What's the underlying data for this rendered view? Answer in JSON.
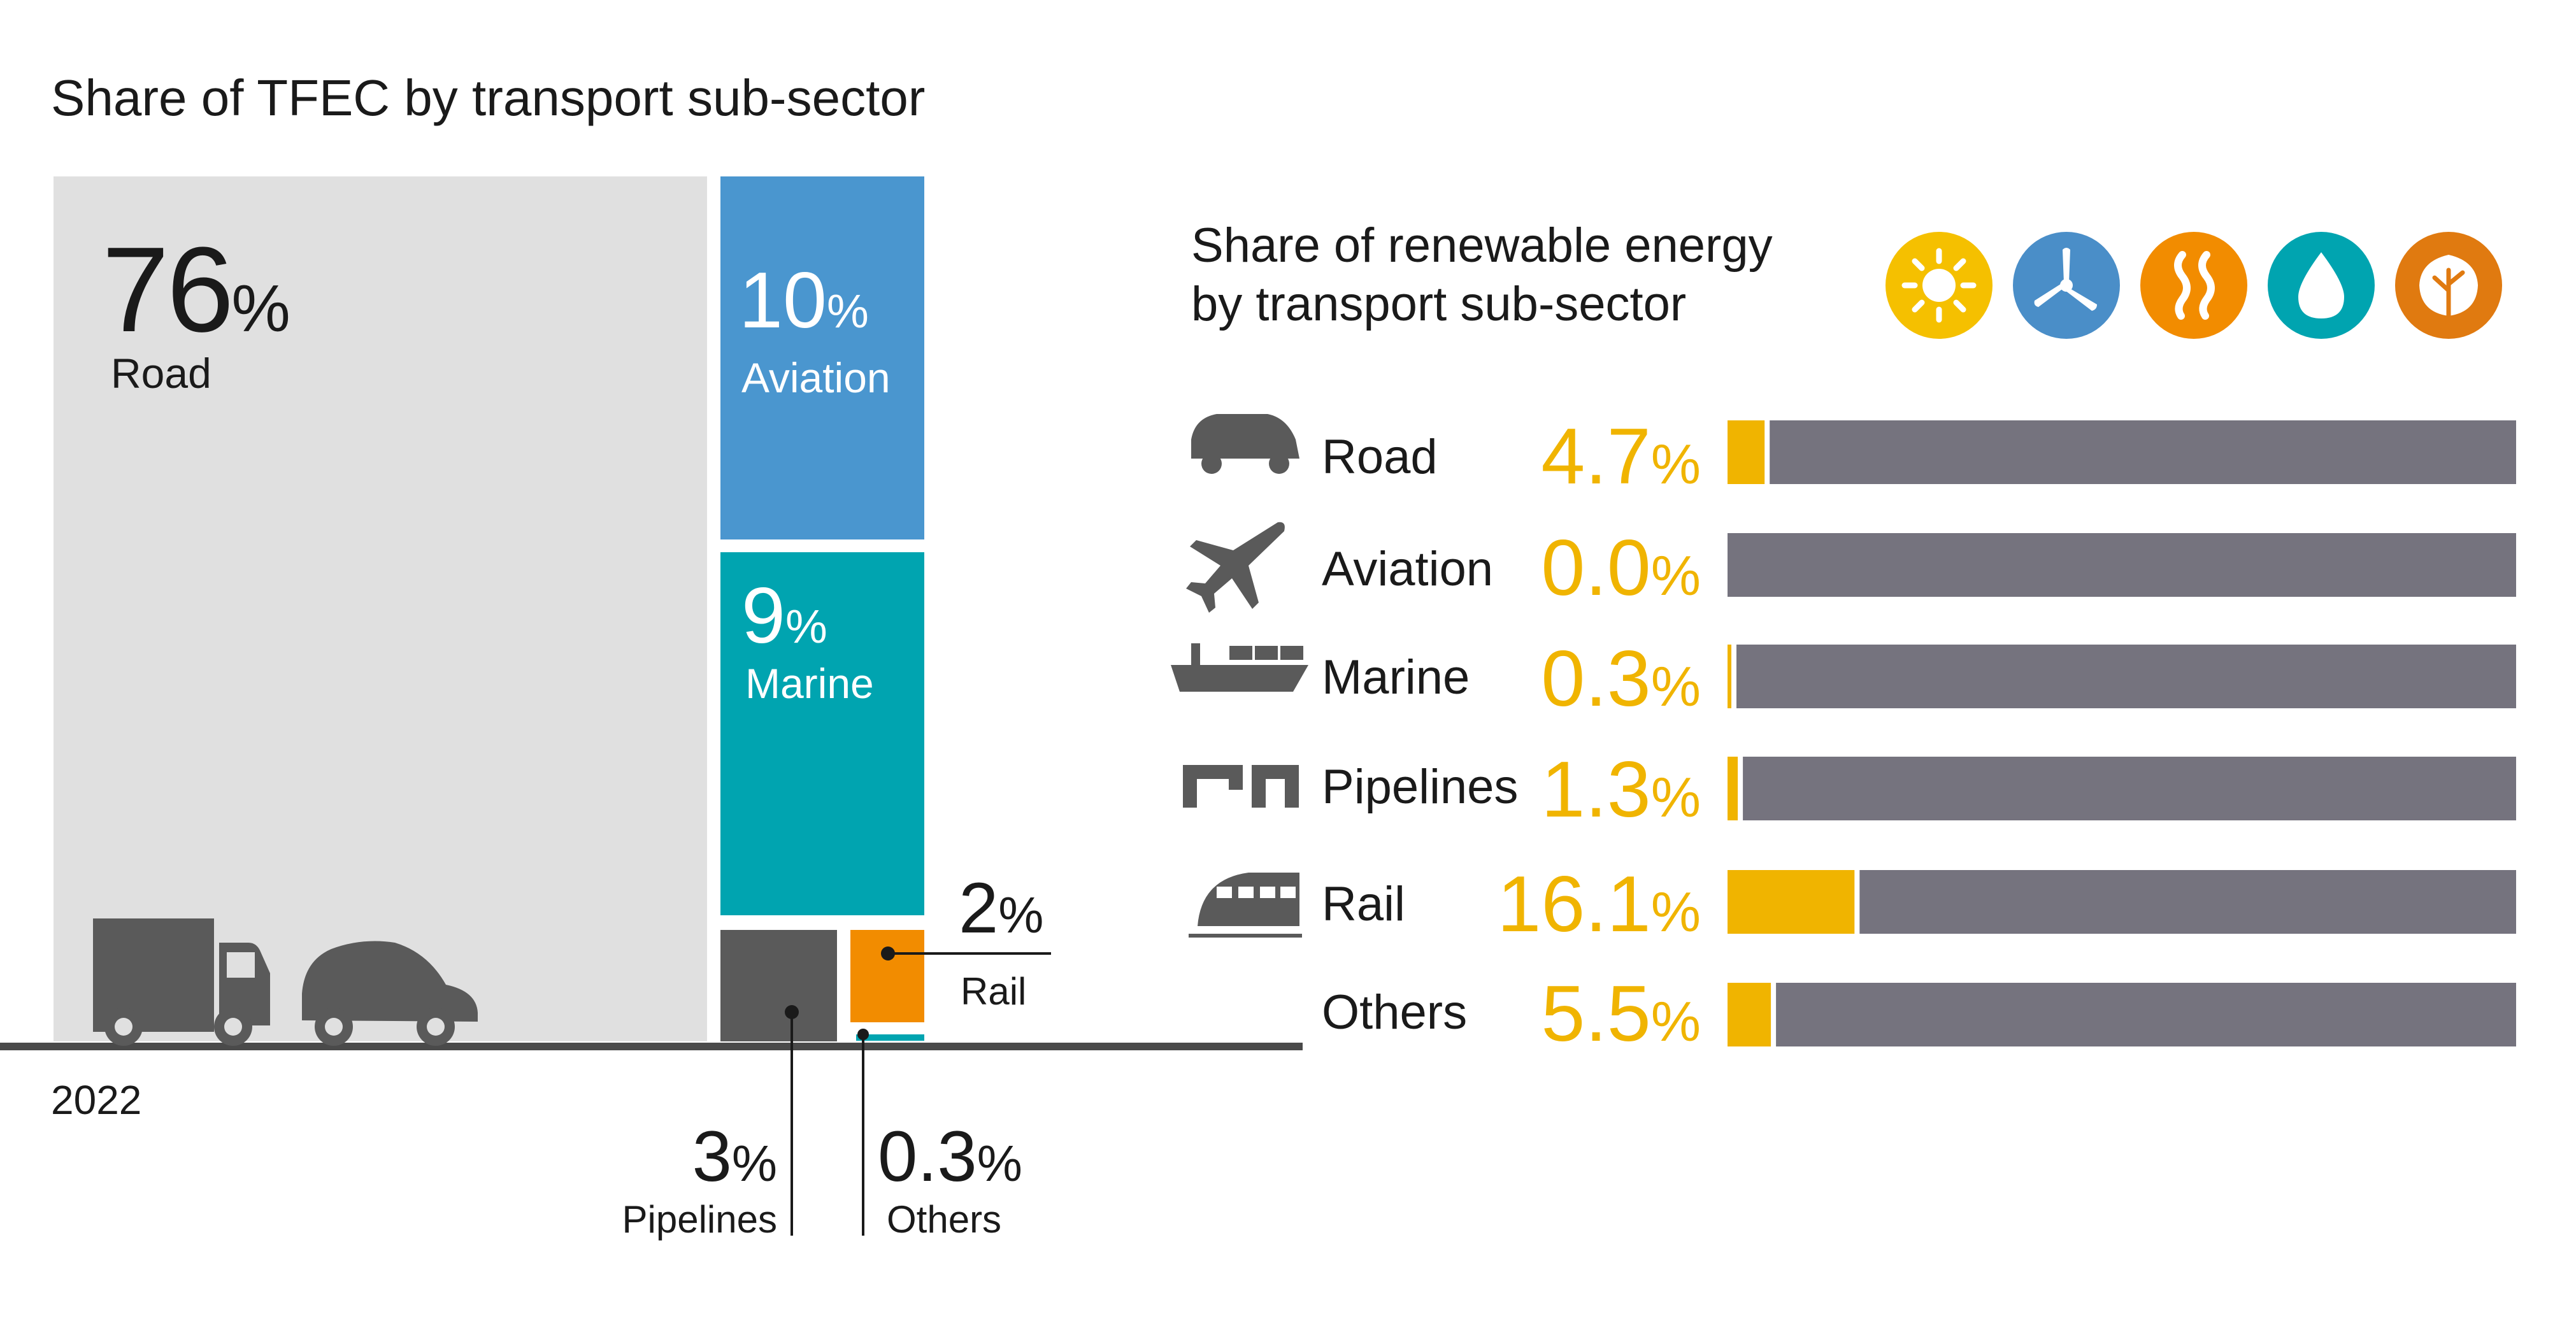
{
  "left_chart": {
    "title": "Share of TFEC by transport sub-sector",
    "year": "2022",
    "tiles": [
      {
        "name": "Road",
        "value": "76",
        "unit": "%",
        "color": "#e0e0e0"
      },
      {
        "name": "Aviation",
        "value": "10",
        "unit": "%",
        "color": "#4a96cf"
      },
      {
        "name": "Marine",
        "value": "9",
        "unit": "%",
        "color": "#00a4b0"
      },
      {
        "name": "Pipelines",
        "value": "3",
        "unit": "%",
        "color": "#5a5a5a"
      },
      {
        "name": "Rail",
        "value": "2",
        "unit": "%",
        "color": "#f28c00"
      },
      {
        "name": "Others",
        "value": "0.3",
        "unit": "%",
        "color": "#00a4b0"
      }
    ]
  },
  "right_chart": {
    "title_line1": "Share of renewable energy",
    "title_line2": "by transport sub-sector",
    "renewable_icons": [
      "sun-icon",
      "wind-turbine-icon",
      "geothermal-heat-icon",
      "water-drop-icon",
      "biomass-leaf-icon"
    ],
    "icon_colors": [
      "#f5c000",
      "#4a8ec8",
      "#f28c00",
      "#00a4b0",
      "#e07a10"
    ]
  },
  "chart_data": [
    {
      "type": "bar",
      "title": "Share of TFEC by transport sub-sector",
      "categories": [
        "Road",
        "Aviation",
        "Marine",
        "Pipelines",
        "Rail",
        "Others"
      ],
      "values": [
        76,
        10,
        9,
        3,
        2,
        0.3
      ],
      "unit": "%",
      "year": "2022"
    },
    {
      "type": "bar",
      "title": "Share of renewable energy by transport sub-sector",
      "categories": [
        "Road",
        "Aviation",
        "Marine",
        "Pipelines",
        "Rail",
        "Others"
      ],
      "values": [
        4.7,
        0.0,
        0.3,
        1.3,
        16.1,
        5.5
      ],
      "value_labels": [
        "4.7",
        "0.0",
        "0.3",
        "1.3",
        "16.1",
        "5.5"
      ],
      "unit": "%",
      "ylim": [
        0,
        100
      ],
      "colors": {
        "renewable": "#f0b400",
        "rest": "#75737e"
      }
    }
  ]
}
